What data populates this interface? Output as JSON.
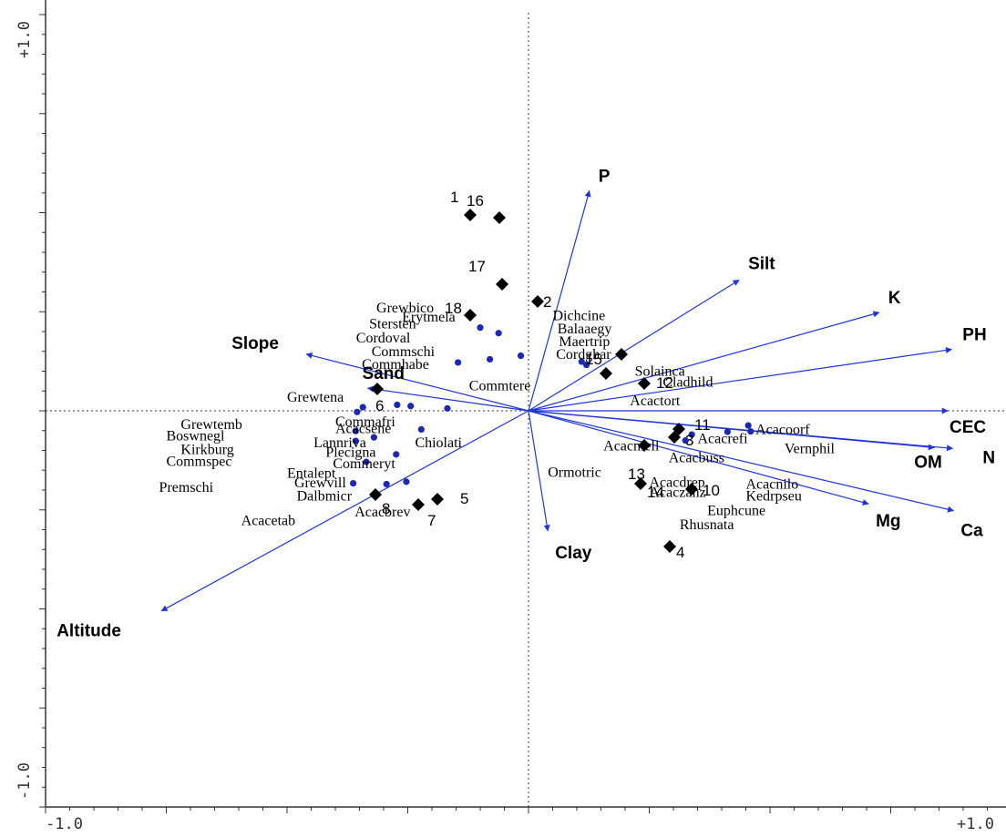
{
  "chart_data": {
    "type": "scatter",
    "subtype": "CCA ordination biplot",
    "xlim": [
      -1.0,
      1.0
    ],
    "ylim": [
      -1.0,
      1.0
    ],
    "x_tick_labels": [
      {
        "value": -1.0,
        "text": "-1.0"
      },
      {
        "value": 1.0,
        "text": "+1.0"
      }
    ],
    "y_tick_labels": [
      {
        "value": 1.0,
        "text": "+1.0"
      },
      {
        "value": -1.0,
        "text": "-1.0"
      }
    ],
    "grid": false,
    "reference_lines": "dotted lines at x=0 and y=0",
    "colors": {
      "arrow": "#1f35d8",
      "species_point": "#1a28b4",
      "site_marker": "#000000",
      "axis": "#333333"
    },
    "environmental_variables": [
      {
        "name": "P",
        "x": 0.126,
        "y": 0.555
      },
      {
        "name": "Silt",
        "x": 0.436,
        "y": 0.33
      },
      {
        "name": "K",
        "x": 0.726,
        "y": 0.248
      },
      {
        "name": "PH",
        "x": 0.876,
        "y": 0.155
      },
      {
        "name": "CEC",
        "x": 0.868,
        "y": 0.0
      },
      {
        "name": "OM",
        "x": 0.84,
        "y": -0.093
      },
      {
        "name": "N",
        "x": 0.878,
        "y": -0.095
      },
      {
        "name": "Mg",
        "x": 0.704,
        "y": -0.235
      },
      {
        "name": "Ca",
        "x": 0.88,
        "y": -0.252
      },
      {
        "name": "Clay",
        "x": 0.04,
        "y": -0.303
      },
      {
        "name": "Slope",
        "x": -0.46,
        "y": 0.143
      },
      {
        "name": "Sand",
        "x": -0.333,
        "y": 0.057
      },
      {
        "name": "Altitude",
        "x": -0.76,
        "y": -0.505
      }
    ],
    "species": [
      {
        "name": "Dichcine",
        "x": 0.05,
        "y": 0.24
      },
      {
        "name": "Balaaegy",
        "x": 0.06,
        "y": 0.207
      },
      {
        "name": "Maertrip",
        "x": 0.063,
        "y": 0.175
      },
      {
        "name": "Cordghar",
        "x": 0.057,
        "y": 0.143
      },
      {
        "name": "Solainca",
        "x": 0.22,
        "y": 0.1
      },
      {
        "name": "Cladhild",
        "x": 0.278,
        "y": 0.072
      },
      {
        "name": "Acactort",
        "x": 0.21,
        "y": 0.025
      },
      {
        "name": "Acacoorf",
        "x": 0.47,
        "y": -0.047
      },
      {
        "name": "Acacrefi",
        "x": 0.35,
        "y": -0.07
      },
      {
        "name": "Acacmell",
        "x": 0.155,
        "y": -0.088
      },
      {
        "name": "Vernphil",
        "x": 0.53,
        "y": -0.095
      },
      {
        "name": "Acacbuss",
        "x": 0.29,
        "y": -0.118
      },
      {
        "name": "Ormotric",
        "x": 0.04,
        "y": -0.155
      },
      {
        "name": "Acacdrep",
        "x": 0.25,
        "y": -0.18
      },
      {
        "name": "Acacnilo",
        "x": 0.45,
        "y": -0.185
      },
      {
        "name": "Acaczanz",
        "x": 0.25,
        "y": -0.206
      },
      {
        "name": "Kedrpseu",
        "x": 0.45,
        "y": -0.215
      },
      {
        "name": "Euphcune",
        "x": 0.37,
        "y": -0.252
      },
      {
        "name": "Rhusnata",
        "x": 0.313,
        "y": -0.287
      },
      {
        "name": "Grewbico",
        "x": -0.315,
        "y": 0.26
      },
      {
        "name": "Erytmela",
        "x": -0.262,
        "y": 0.237
      },
      {
        "name": "Stersten",
        "x": -0.33,
        "y": 0.219
      },
      {
        "name": "Cordoval",
        "x": -0.357,
        "y": 0.184
      },
      {
        "name": "Commschi",
        "x": -0.325,
        "y": 0.15
      },
      {
        "name": "Commhabe",
        "x": -0.345,
        "y": 0.117
      },
      {
        "name": "Commtere",
        "x": -0.123,
        "y": 0.063
      },
      {
        "name": "Grewtena",
        "x": -0.5,
        "y": 0.035
      },
      {
        "name": "Commafri",
        "x": -0.4,
        "y": -0.028
      },
      {
        "name": "Grewtemb",
        "x": -0.72,
        "y": -0.034
      },
      {
        "name": "Acacsene",
        "x": -0.4,
        "y": -0.045
      },
      {
        "name": "Boswnegl",
        "x": -0.75,
        "y": -0.063
      },
      {
        "name": "Lannriva",
        "x": -0.445,
        "y": -0.08
      },
      {
        "name": "Chiolati",
        "x": -0.235,
        "y": -0.08
      },
      {
        "name": "Kirkburg",
        "x": -0.72,
        "y": -0.098
      },
      {
        "name": "Plecigna",
        "x": -0.42,
        "y": -0.105
      },
      {
        "name": "Commspec",
        "x": -0.75,
        "y": -0.128
      },
      {
        "name": "Commeryt",
        "x": -0.405,
        "y": -0.133
      },
      {
        "name": "Entalept",
        "x": -0.5,
        "y": -0.158
      },
      {
        "name": "Grewvill",
        "x": -0.485,
        "y": -0.182
      },
      {
        "name": "Premschi",
        "x": -0.765,
        "y": -0.193
      },
      {
        "name": "Dalbmicr",
        "x": -0.48,
        "y": -0.215
      },
      {
        "name": "Acacbrev",
        "x": -0.36,
        "y": -0.255
      },
      {
        "name": "Acacetab",
        "x": -0.595,
        "y": -0.277
      }
    ],
    "unlabeled_species_points": [
      {
        "x": -0.1,
        "y": 0.21
      },
      {
        "x": -0.062,
        "y": 0.196
      },
      {
        "x": -0.016,
        "y": 0.139
      },
      {
        "x": -0.08,
        "y": 0.13
      },
      {
        "x": -0.146,
        "y": 0.122
      },
      {
        "x": 0.11,
        "y": 0.124
      },
      {
        "x": 0.12,
        "y": 0.116
      },
      {
        "x": 0.455,
        "y": -0.037
      },
      {
        "x": -0.168,
        "y": 0.006
      },
      {
        "x": -0.272,
        "y": 0.015
      },
      {
        "x": -0.355,
        "y": -0.003
      },
      {
        "x": -0.343,
        "y": 0.009
      },
      {
        "x": -0.244,
        "y": 0.012
      },
      {
        "x": -0.358,
        "y": -0.051
      },
      {
        "x": -0.222,
        "y": -0.047
      },
      {
        "x": -0.358,
        "y": -0.076
      },
      {
        "x": -0.32,
        "y": -0.067
      },
      {
        "x": -0.274,
        "y": -0.11
      },
      {
        "x": -0.336,
        "y": -0.129
      },
      {
        "x": -0.253,
        "y": -0.179
      },
      {
        "x": -0.294,
        "y": -0.185
      },
      {
        "x": -0.363,
        "y": -0.183
      },
      {
        "x": 0.46,
        "y": -0.052
      },
      {
        "x": 0.412,
        "y": -0.053
      },
      {
        "x": 0.338,
        "y": -0.06
      },
      {
        "x": 0.325,
        "y": -0.075
      }
    ],
    "sites": [
      {
        "label": "1",
        "x": -0.28,
        "y": 0.467
      },
      {
        "label": "16",
        "x": -0.138,
        "y": 0.459
      },
      {
        "label": "17",
        "x": -0.123,
        "y": 0.292
      },
      {
        "label": "18",
        "x": -0.273,
        "y": 0.225
      },
      {
        "label": "2",
        "x": 0.038,
        "y": 0.266
      },
      {
        "label": "Sand",
        "x": -0.697,
        "y": 0.05
      },
      {
        "label": "15",
        "x": 0.378,
        "y": 0.09
      },
      {
        "label": "12",
        "x": 0.55,
        "y": 0.066
      },
      {
        "label": "11",
        "x": 0.724,
        "y": -0.04
      },
      {
        "label": "3",
        "x": 0.695,
        "y": -0.061
      },
      {
        "label": "13",
        "x": 0.552,
        "y": -0.083
      },
      {
        "label": "14",
        "x": 0.52,
        "y": -0.176
      },
      {
        "label": "10",
        "x": 0.773,
        "y": -0.187
      },
      {
        "label": "8",
        "x": -0.695,
        "y": -0.198
      },
      {
        "label": "7",
        "x": -0.53,
        "y": -0.22
      },
      {
        "label": "5",
        "x": -0.423,
        "y": -0.205
      },
      {
        "label": "4",
        "x": 0.668,
        "y": -0.327
      },
      {
        "label": "Solainca",
        "x": 0.438,
        "y": 0.135
      },
      {
        "label": "6",
        "x": 0.0,
        "y": 0.0
      }
    ]
  }
}
